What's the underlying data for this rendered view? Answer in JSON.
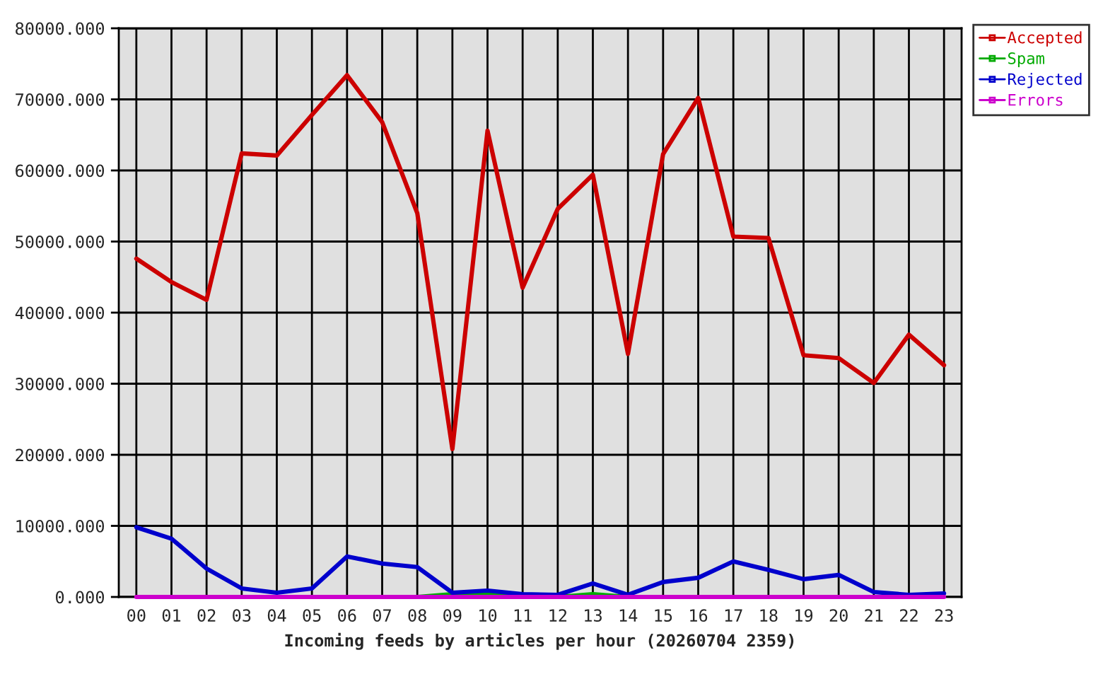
{
  "chart_data": {
    "type": "line",
    "xlabel": "Incoming feeds by articles per hour (20260704 2359)",
    "categories": [
      "00",
      "01",
      "02",
      "03",
      "04",
      "05",
      "06",
      "07",
      "08",
      "09",
      "10",
      "11",
      "12",
      "13",
      "14",
      "15",
      "16",
      "17",
      "18",
      "19",
      "20",
      "21",
      "22",
      "23"
    ],
    "series": [
      {
        "name": "Accepted",
        "color": "#cc0000",
        "values": [
          47600,
          44300,
          41800,
          62400,
          62100,
          67800,
          73400,
          66800,
          54000,
          20800,
          65600,
          43500,
          54600,
          59400,
          34200,
          62300,
          70200,
          50700,
          50500,
          34000,
          33600,
          30100,
          36900,
          32600
        ]
      },
      {
        "name": "Spam",
        "color": "#00aa00",
        "values": [
          null,
          null,
          null,
          null,
          null,
          null,
          null,
          null,
          0,
          400,
          400,
          0,
          0,
          400,
          0,
          null,
          null,
          null,
          null,
          null,
          null,
          null,
          null,
          null
        ]
      },
      {
        "name": "Rejected",
        "color": "#0000cc",
        "values": [
          9800,
          8200,
          4000,
          1200,
          600,
          1200,
          5700,
          4700,
          4200,
          600,
          900,
          400,
          300,
          1900,
          300,
          2100,
          2700,
          5000,
          3800,
          2500,
          3100,
          700,
          300,
          500
        ]
      },
      {
        "name": "Errors",
        "color": "#cc00cc",
        "values": [
          0,
          0,
          0,
          0,
          0,
          0,
          0,
          0,
          0,
          0,
          0,
          0,
          0,
          0,
          0,
          0,
          0,
          0,
          0,
          0,
          0,
          0,
          0,
          0
        ]
      }
    ],
    "ylim": [
      0,
      80000
    ],
    "yticks": [
      {
        "value": 0,
        "label": "0.000"
      },
      {
        "value": 10000,
        "label": "10000.000"
      },
      {
        "value": 20000,
        "label": "20000.000"
      },
      {
        "value": 30000,
        "label": "30000.000"
      },
      {
        "value": 40000,
        "label": "40000.000"
      },
      {
        "value": 50000,
        "label": "50000.000"
      },
      {
        "value": 60000,
        "label": "60000.000"
      },
      {
        "value": 70000,
        "label": "70000.000"
      },
      {
        "value": 80000,
        "label": "80000.000"
      }
    ],
    "grid": true,
    "legend": "top right",
    "line_style": "solid"
  }
}
